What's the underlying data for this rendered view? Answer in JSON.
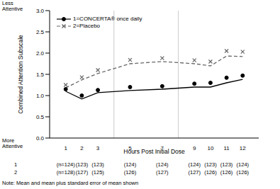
{
  "chart_data": {
    "type": "line",
    "y_label": "Combined Attention Subscale",
    "x_label": "Hours Post Initial Dose",
    "annotations": [
      "Less Attentive",
      "More Attentive"
    ],
    "note": "Note: Mean and mean plus standard error of mean shown",
    "x": [
      1,
      2,
      3,
      5,
      7,
      9,
      10,
      11,
      12
    ],
    "series": [
      {
        "name": "1=CONCERTA® once daily",
        "color": "#000000",
        "marker": "circle",
        "line_style": "solid",
        "values": [
          1.1,
          0.92,
          1.07,
          1.12,
          1.15,
          1.2,
          1.2,
          1.3,
          1.38
        ],
        "se": [
          0.05,
          0.08,
          0.06,
          0.08,
          0.07,
          0.08,
          0.1,
          0.12,
          0.09
        ]
      },
      {
        "name": "2=Placebo",
        "color": "#666666",
        "marker": "x",
        "line_style": "dashed",
        "values": [
          1.18,
          1.37,
          1.52,
          1.75,
          1.8,
          1.75,
          1.7,
          1.93,
          1.92
        ],
        "se": [
          0.07,
          0.06,
          0.08,
          0.09,
          0.08,
          0.08,
          0.1,
          0.12,
          0.11
        ]
      }
    ],
    "sample_sizes": [
      {
        "label": "1",
        "values": [
          "(n=124)",
          "(123)",
          "(123)",
          "(124)",
          "(124)",
          "(124)",
          "(123)",
          "(123)",
          "(124)"
        ]
      },
      {
        "label": "2",
        "values": [
          "(n=128)",
          "(127)",
          "(125)",
          "(126)",
          "(127)",
          "(127)",
          "(126)",
          "(126)",
          "(126)"
        ]
      }
    ],
    "reference_lines": [
      4,
      8
    ],
    "xlim": [
      0,
      13
    ],
    "xticks": [
      1,
      2,
      3,
      5,
      7,
      9,
      10,
      11,
      12
    ],
    "ylim": [
      0,
      3
    ],
    "yticks": [
      {
        "value": 0,
        "label": "0.0"
      },
      0.5,
      {
        "value": 1,
        "label": "1.0"
      },
      1.5,
      {
        "value": 2,
        "label": "2.0"
      },
      2.5,
      {
        "value": 3,
        "label": "3.0"
      }
    ],
    "grid": false,
    "legend": "top-left"
  }
}
